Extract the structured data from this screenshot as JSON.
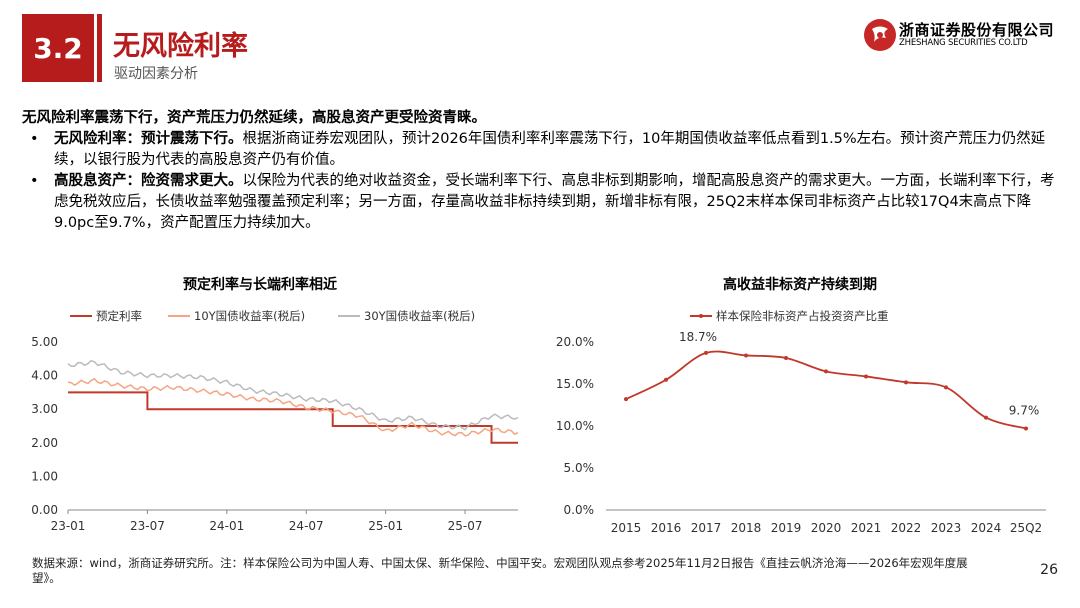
{
  "header": {
    "section_number": "3.2",
    "title": "无风险利率",
    "subtitle": "驱动因素分析"
  },
  "logo": {
    "name_cn": "浙商证券股份有限公司",
    "name_en": "ZHESHANG SECURITIES CO.LTD"
  },
  "summary": {
    "lead": "无风险利率震荡下行，资产荒压力仍然延续，高股息资产更受险资青睐。",
    "bullets": [
      {
        "label": "无风险利率：预计震荡下行。",
        "text": "根据浙商证券宏观团队，预计2026年国债利率利率震荡下行，10年期国债收益率低点看到1.5%左右。预计资产荒压力仍然延续，以银行股为代表的高股息资产仍有价值。"
      },
      {
        "label": "高股息资产：险资需求更大。",
        "text": "以保险为代表的绝对收益资金，受长端利率下行、高息非标到期影响，增配高股息资产的需求更大。一方面，长端利率下行，考虑免税效应后，长债收益率勉强覆盖预定利率；另一方面，存量高收益非标持续到期，新增非标有限，25Q2末样本保司非标资产占比较17Q4末高点下降9.0pc至9.7%，资产配置压力持续加大。"
      }
    ]
  },
  "chart_data": [
    {
      "type": "line",
      "title": "预定利率与长端利率相近",
      "x_tick_labels": [
        "23-01",
        "23-07",
        "24-01",
        "24-07",
        "25-01",
        "25-07"
      ],
      "y_tick_labels": [
        "5.00",
        "4.00",
        "3.00",
        "2.00",
        "1.00",
        "0.00"
      ],
      "ylim": [
        0,
        5
      ],
      "x": [
        "2023-01",
        "2023-03",
        "2023-05",
        "2023-07",
        "2023-09",
        "2023-11",
        "2024-01",
        "2024-03",
        "2024-05",
        "2024-07",
        "2024-09",
        "2024-11",
        "2025-01",
        "2025-03",
        "2025-05",
        "2025-07",
        "2025-09",
        "2025-11"
      ],
      "series": [
        {
          "name": "预定利率",
          "color": "#c0392b",
          "values": [
            3.5,
            3.5,
            3.5,
            3.0,
            3.0,
            3.0,
            3.0,
            3.0,
            3.0,
            3.0,
            2.5,
            2.5,
            2.5,
            2.5,
            2.5,
            2.5,
            2.0,
            2.0
          ]
        },
        {
          "name": "10Y国债收益率(税后)",
          "color": "#f4a582",
          "values": [
            3.75,
            3.85,
            3.7,
            3.6,
            3.65,
            3.55,
            3.45,
            3.3,
            3.25,
            3.05,
            2.95,
            2.8,
            2.35,
            2.55,
            2.3,
            2.25,
            2.4,
            2.3
          ]
        },
        {
          "name": "30Y国债收益率(税后)",
          "color": "#bbbbbb",
          "values": [
            4.3,
            4.4,
            4.1,
            4.0,
            4.0,
            3.95,
            3.8,
            3.55,
            3.45,
            3.3,
            3.25,
            3.0,
            2.65,
            2.75,
            2.5,
            2.45,
            2.8,
            2.75
          ]
        }
      ]
    },
    {
      "type": "line",
      "title": "高收益非标资产持续到期",
      "categories": [
        "2015",
        "2016",
        "2017",
        "2018",
        "2019",
        "2020",
        "2021",
        "2022",
        "2023",
        "2024",
        "25Q2"
      ],
      "y_tick_labels": [
        "20.0%",
        "15.0%",
        "10.0%",
        "5.0%",
        "0.0%"
      ],
      "ylim": [
        0,
        20
      ],
      "series": [
        {
          "name": "样本保险非标资产占投资资产比重",
          "color": "#c0392b",
          "values": [
            13.2,
            15.5,
            18.7,
            18.4,
            18.1,
            16.5,
            15.9,
            15.2,
            14.6,
            11.0,
            9.7
          ]
        }
      ],
      "annotations": [
        "18.7%",
        "9.7%"
      ]
    }
  ],
  "footnote": "数据来源：wind，浙商证券研究所。注：样本保险公司为中国人寿、中国太保、新华保险、中国平安。宏观团队观点参考2025年11月2日报告《直挂云帆济沧海——2026年宏观年度展望》。",
  "page_number": "26"
}
